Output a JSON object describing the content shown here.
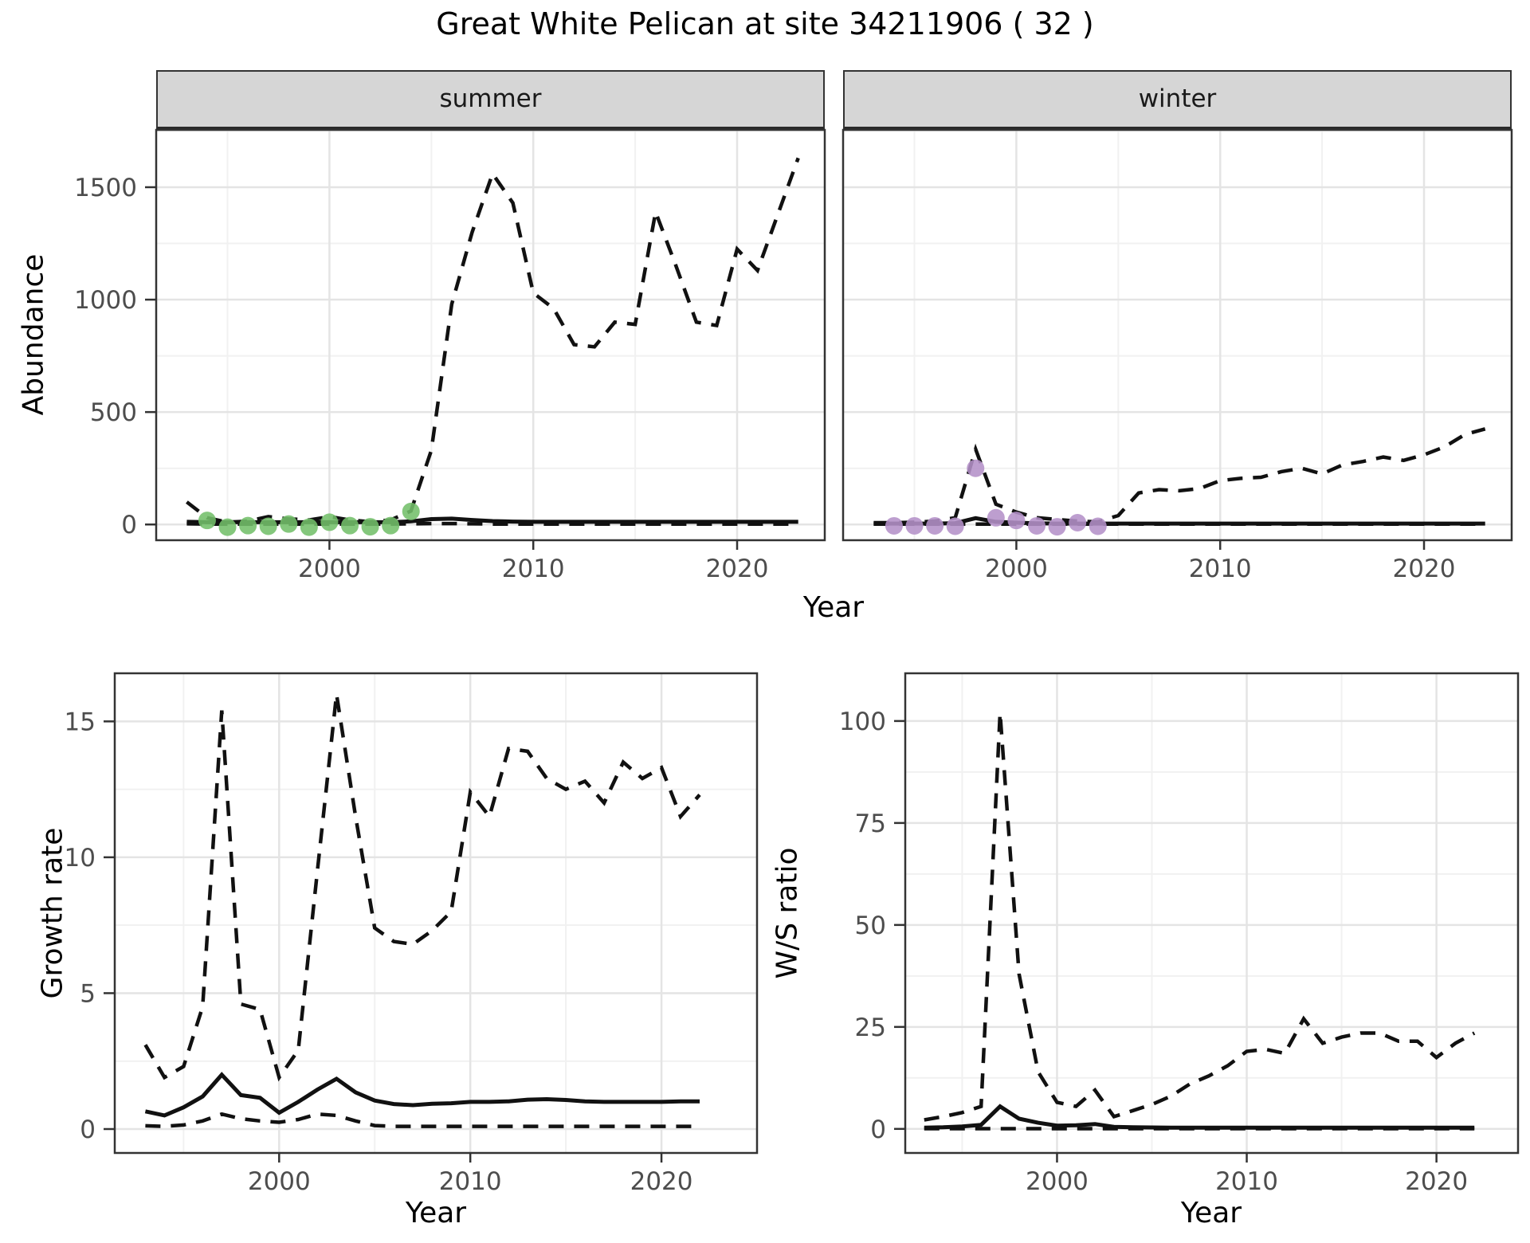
{
  "title": "Great White Pelican at site 34211906 ( 32 )",
  "facet_labels": {
    "summer": "summer",
    "winter": "winter"
  },
  "axis_labels": {
    "abundance": "Abundance",
    "year": "Year",
    "growth_rate": "Growth rate",
    "ws_ratio": "W/S ratio"
  },
  "colors": {
    "line": "#111111",
    "summer_points": "#73bf6a",
    "winter_points": "#b491c8",
    "strip_bg": "#d6d6d6",
    "panel_border": "#333333",
    "grid_major": "#e4e4e4",
    "grid_minor": "#f1f1f1",
    "tick": "#333333",
    "tick_label": "#4d4d4d"
  },
  "chart_data": [
    {
      "id": "abundance_summer",
      "type": "line",
      "facet": "summer",
      "xlabel": "Year",
      "ylabel": "Abundance",
      "xlim": [
        1991.5,
        2024.3
      ],
      "ylim": [
        -70,
        1755
      ],
      "xticks": [
        2000,
        2010,
        2020
      ],
      "yticks": [
        0,
        500,
        1000,
        1500
      ],
      "grid": true,
      "legend": "none",
      "x": [
        1993,
        1994,
        1995,
        1996,
        1997,
        1998,
        1999,
        2000,
        2001,
        2002,
        2003,
        2004,
        2005,
        2006,
        2007,
        2008,
        2009,
        2010,
        2011,
        2012,
        2013,
        2014,
        2015,
        2016,
        2017,
        2018,
        2019,
        2020,
        2021,
        2022,
        2023
      ],
      "series": [
        {
          "name": "upper_ci",
          "type": "line",
          "dash": true,
          "values": [
            100,
            30,
            10,
            15,
            35,
            25,
            20,
            35,
            20,
            12,
            20,
            60,
            330,
            980,
            1300,
            1560,
            1430,
            1030,
            960,
            800,
            790,
            900,
            890,
            1390,
            1150,
            900,
            885,
            1225,
            1130,
            1380,
            1630
          ]
        },
        {
          "name": "lower_ci",
          "type": "line",
          "dash": true,
          "values": [
            3,
            2,
            2,
            2,
            2,
            2,
            2,
            2,
            2,
            2,
            2,
            3,
            4,
            4,
            3,
            2,
            2,
            2,
            2,
            2,
            2,
            2,
            2,
            2,
            2,
            2,
            2,
            2,
            2,
            2,
            2
          ]
        },
        {
          "name": "median",
          "type": "line",
          "dash": false,
          "values": [
            12,
            10,
            10,
            10,
            10,
            10,
            10,
            10,
            10,
            10,
            10,
            14,
            24,
            26,
            20,
            15,
            13,
            12,
            12,
            12,
            12,
            12,
            12,
            12,
            12,
            12,
            12,
            12,
            12,
            12,
            12
          ]
        },
        {
          "name": "observations",
          "type": "points",
          "color_key": "summer_points",
          "x": [
            1994,
            1995,
            1996,
            1997,
            1998,
            1999,
            2000,
            2001,
            2002,
            2003,
            2004
          ],
          "values": [
            18,
            -12,
            -5,
            -8,
            2,
            -12,
            10,
            -5,
            -10,
            -5,
            58
          ]
        }
      ]
    },
    {
      "id": "abundance_winter",
      "type": "line",
      "facet": "winter",
      "xlabel": "Year",
      "ylabel": "Abundance",
      "xlim": [
        1991.5,
        2024.3
      ],
      "ylim": [
        -70,
        1755
      ],
      "xticks": [
        2000,
        2010,
        2020
      ],
      "yticks": [
        0,
        500,
        1000,
        1500
      ],
      "grid": true,
      "legend": "none",
      "x": [
        1993,
        1994,
        1995,
        1996,
        1997,
        1998,
        1999,
        2000,
        2001,
        2002,
        2003,
        2004,
        2005,
        2006,
        2007,
        2008,
        2009,
        2010,
        2011,
        2012,
        2013,
        2014,
        2015,
        2016,
        2017,
        2018,
        2019,
        2020,
        2021,
        2022,
        2023
      ],
      "series": [
        {
          "name": "upper_ci",
          "type": "line",
          "dash": true,
          "values": [
            8,
            8,
            10,
            15,
            30,
            335,
            90,
            55,
            30,
            22,
            15,
            12,
            40,
            140,
            155,
            150,
            160,
            195,
            205,
            210,
            235,
            250,
            225,
            265,
            280,
            300,
            285,
            310,
            345,
            400,
            425
          ]
        },
        {
          "name": "lower_ci",
          "type": "line",
          "dash": true,
          "values": [
            1.5,
            1.5,
            1.5,
            1.5,
            1.5,
            1.5,
            1.5,
            1.5,
            1.5,
            1.5,
            1.5,
            1.5,
            1.5,
            1.5,
            1.5,
            1.5,
            1.5,
            1.5,
            1.5,
            1.5,
            1.5,
            1.5,
            1.5,
            1.5,
            1.5,
            1.5,
            1.5,
            1.5,
            1.5,
            1.5,
            1.5
          ]
        },
        {
          "name": "median",
          "type": "line",
          "dash": false,
          "values": [
            4,
            4,
            4,
            4,
            6,
            28,
            12,
            8,
            5,
            4,
            4,
            4,
            4,
            4,
            4,
            4,
            4,
            4,
            4,
            4,
            4,
            4,
            4,
            4,
            4,
            4,
            4,
            4,
            4,
            4,
            4
          ]
        },
        {
          "name": "observations",
          "type": "points",
          "color_key": "winter_points",
          "x": [
            1994,
            1995,
            1996,
            1997,
            1998,
            1999,
            2000,
            2001,
            2002,
            2003,
            2004
          ],
          "values": [
            -6,
            -6,
            -6,
            -8,
            250,
            30,
            18,
            -6,
            -10,
            8,
            -8
          ]
        }
      ]
    },
    {
      "id": "growth_rate",
      "type": "line",
      "xlabel": "Year",
      "ylabel": "Growth rate",
      "xlim": [
        1991.4,
        2025.0
      ],
      "ylim": [
        -0.88,
        16.77
      ],
      "xticks": [
        2000,
        2010,
        2020
      ],
      "yticks": [
        0,
        5,
        10,
        15
      ],
      "grid": true,
      "legend": "none",
      "x": [
        1993,
        1994,
        1995,
        1996,
        1997,
        1998,
        1999,
        2000,
        2001,
        2002,
        2003,
        2004,
        2005,
        2006,
        2007,
        2008,
        2009,
        2010,
        2011,
        2012,
        2013,
        2014,
        2015,
        2016,
        2017,
        2018,
        2019,
        2020,
        2021,
        2022
      ],
      "series": [
        {
          "name": "upper_ci",
          "type": "line",
          "dash": true,
          "values": [
            3.1,
            1.9,
            2.3,
            4.5,
            15.4,
            4.6,
            4.4,
            1.9,
            2.9,
            9.5,
            16.0,
            11.5,
            7.4,
            6.9,
            6.8,
            7.3,
            8.0,
            12.4,
            11.5,
            14.0,
            13.9,
            12.9,
            12.5,
            12.8,
            12.0,
            13.5,
            12.9,
            13.3,
            11.5,
            12.3
          ]
        },
        {
          "name": "lower_ci",
          "type": "line",
          "dash": true,
          "values": [
            0.12,
            0.1,
            0.15,
            0.3,
            0.55,
            0.38,
            0.3,
            0.25,
            0.35,
            0.55,
            0.5,
            0.3,
            0.13,
            0.1,
            0.1,
            0.1,
            0.1,
            0.1,
            0.1,
            0.1,
            0.1,
            0.1,
            0.1,
            0.1,
            0.1,
            0.1,
            0.1,
            0.1,
            0.1,
            0.1
          ]
        },
        {
          "name": "median",
          "type": "line",
          "dash": false,
          "values": [
            0.65,
            0.5,
            0.8,
            1.2,
            2.0,
            1.25,
            1.15,
            0.6,
            1.0,
            1.45,
            1.85,
            1.35,
            1.05,
            0.92,
            0.88,
            0.93,
            0.95,
            1.0,
            1.0,
            1.02,
            1.08,
            1.1,
            1.07,
            1.02,
            1.0,
            1.0,
            1.0,
            1.0,
            1.02,
            1.02
          ]
        }
      ]
    },
    {
      "id": "ws_ratio",
      "type": "line",
      "xlabel": "Year",
      "ylabel": "W/S ratio",
      "xlim": [
        1992.0,
        2024.3
      ],
      "ylim": [
        -5.9,
        111.7
      ],
      "xticks": [
        2000,
        2010,
        2020
      ],
      "yticks": [
        0,
        25,
        50,
        75,
        100
      ],
      "grid": true,
      "legend": "none",
      "x": [
        1993,
        1994,
        1995,
        1996,
        1997,
        1998,
        1999,
        2000,
        2001,
        2002,
        2003,
        2004,
        2005,
        2006,
        2007,
        2008,
        2009,
        2010,
        2011,
        2012,
        2013,
        2014,
        2015,
        2016,
        2017,
        2018,
        2019,
        2020,
        2021,
        2022
      ],
      "series": [
        {
          "name": "upper_ci",
          "type": "line",
          "dash": true,
          "values": [
            2.2,
            3,
            4,
            5.5,
            102,
            38,
            14,
            6.5,
            5.5,
            9.5,
            3,
            4.5,
            6,
            8,
            11,
            13,
            15.5,
            19,
            19.5,
            18.5,
            27,
            21,
            22.5,
            23.5,
            23.5,
            21.5,
            21.5,
            17.5,
            21,
            23.5
          ]
        },
        {
          "name": "lower_ci",
          "type": "line",
          "dash": true,
          "values": [
            0.05,
            0.05,
            0.05,
            0.05,
            0.05,
            0.05,
            0.05,
            0.05,
            0.05,
            0.05,
            0.05,
            0.05,
            0.05,
            0.05,
            0.05,
            0.05,
            0.05,
            0.05,
            0.05,
            0.05,
            0.05,
            0.05,
            0.05,
            0.05,
            0.05,
            0.05,
            0.05,
            0.05,
            0.05,
            0.05
          ]
        },
        {
          "name": "median",
          "type": "line",
          "dash": false,
          "values": [
            0.3,
            0.4,
            0.6,
            1.0,
            5.5,
            2.5,
            1.5,
            0.8,
            0.9,
            1.2,
            0.5,
            0.4,
            0.35,
            0.3,
            0.3,
            0.3,
            0.3,
            0.3,
            0.3,
            0.3,
            0.3,
            0.3,
            0.3,
            0.3,
            0.3,
            0.3,
            0.3,
            0.3,
            0.3,
            0.3
          ]
        }
      ]
    }
  ]
}
